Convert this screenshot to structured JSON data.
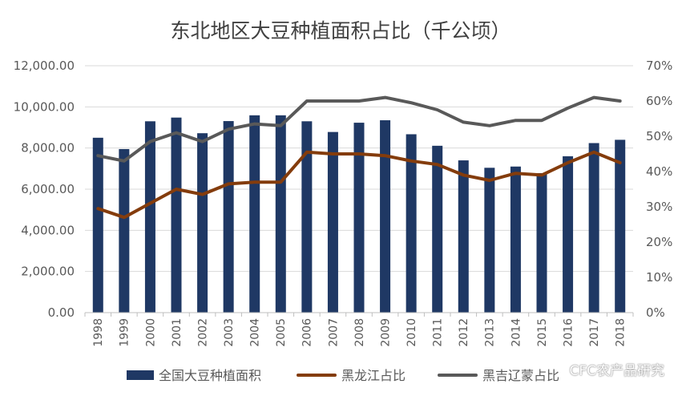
{
  "chart_data": {
    "type": "bar+line",
    "title": "东北地区大豆种植面积占比（千公顷）",
    "categories": [
      "1998",
      "1999",
      "2000",
      "2001",
      "2002",
      "2003",
      "2004",
      "2005",
      "2006",
      "2007",
      "2008",
      "2009",
      "2010",
      "2011",
      "2012",
      "2013",
      "2014",
      "2015",
      "2016",
      "2017",
      "2018"
    ],
    "bar_series": {
      "name": "全国大豆种植面积",
      "color": "#1f3864",
      "axis": "left",
      "values": [
        8500,
        7950,
        9300,
        9480,
        8720,
        9310,
        9590,
        9590,
        9300,
        8780,
        9230,
        9350,
        8670,
        8110,
        7400,
        7040,
        7100,
        6780,
        7600,
        8240,
        8400
      ]
    },
    "line_series": [
      {
        "name": "黑龙江占比",
        "color": "#843c0c",
        "axis": "right",
        "values": [
          29.5,
          27,
          31,
          35,
          33.5,
          36.5,
          37,
          37,
          45.5,
          45,
          45,
          44.5,
          43,
          42,
          39,
          37.5,
          39.5,
          39,
          42.5,
          45.5,
          42.5
        ]
      },
      {
        "name": "黑吉辽蒙占比",
        "color": "#595959",
        "axis": "right",
        "values": [
          44.5,
          43,
          48.5,
          51,
          48.5,
          52,
          53.5,
          53,
          60,
          60,
          60,
          61,
          59.5,
          57.5,
          54,
          53,
          54.5,
          54.5,
          58,
          61,
          60
        ]
      }
    ],
    "y_left": {
      "min": 0,
      "max": 12000,
      "ticks": [
        "0.00",
        "2,000.00",
        "4,000.00",
        "6,000.00",
        "8,000.00",
        "10,000.00",
        "12,000.00"
      ]
    },
    "y_right": {
      "min": 0,
      "max": 70,
      "ticks": [
        "0%",
        "10%",
        "20%",
        "30%",
        "40%",
        "50%",
        "60%",
        "70%"
      ]
    },
    "grid": true,
    "legend_position": "bottom"
  },
  "watermark": "CFC农产品研究"
}
